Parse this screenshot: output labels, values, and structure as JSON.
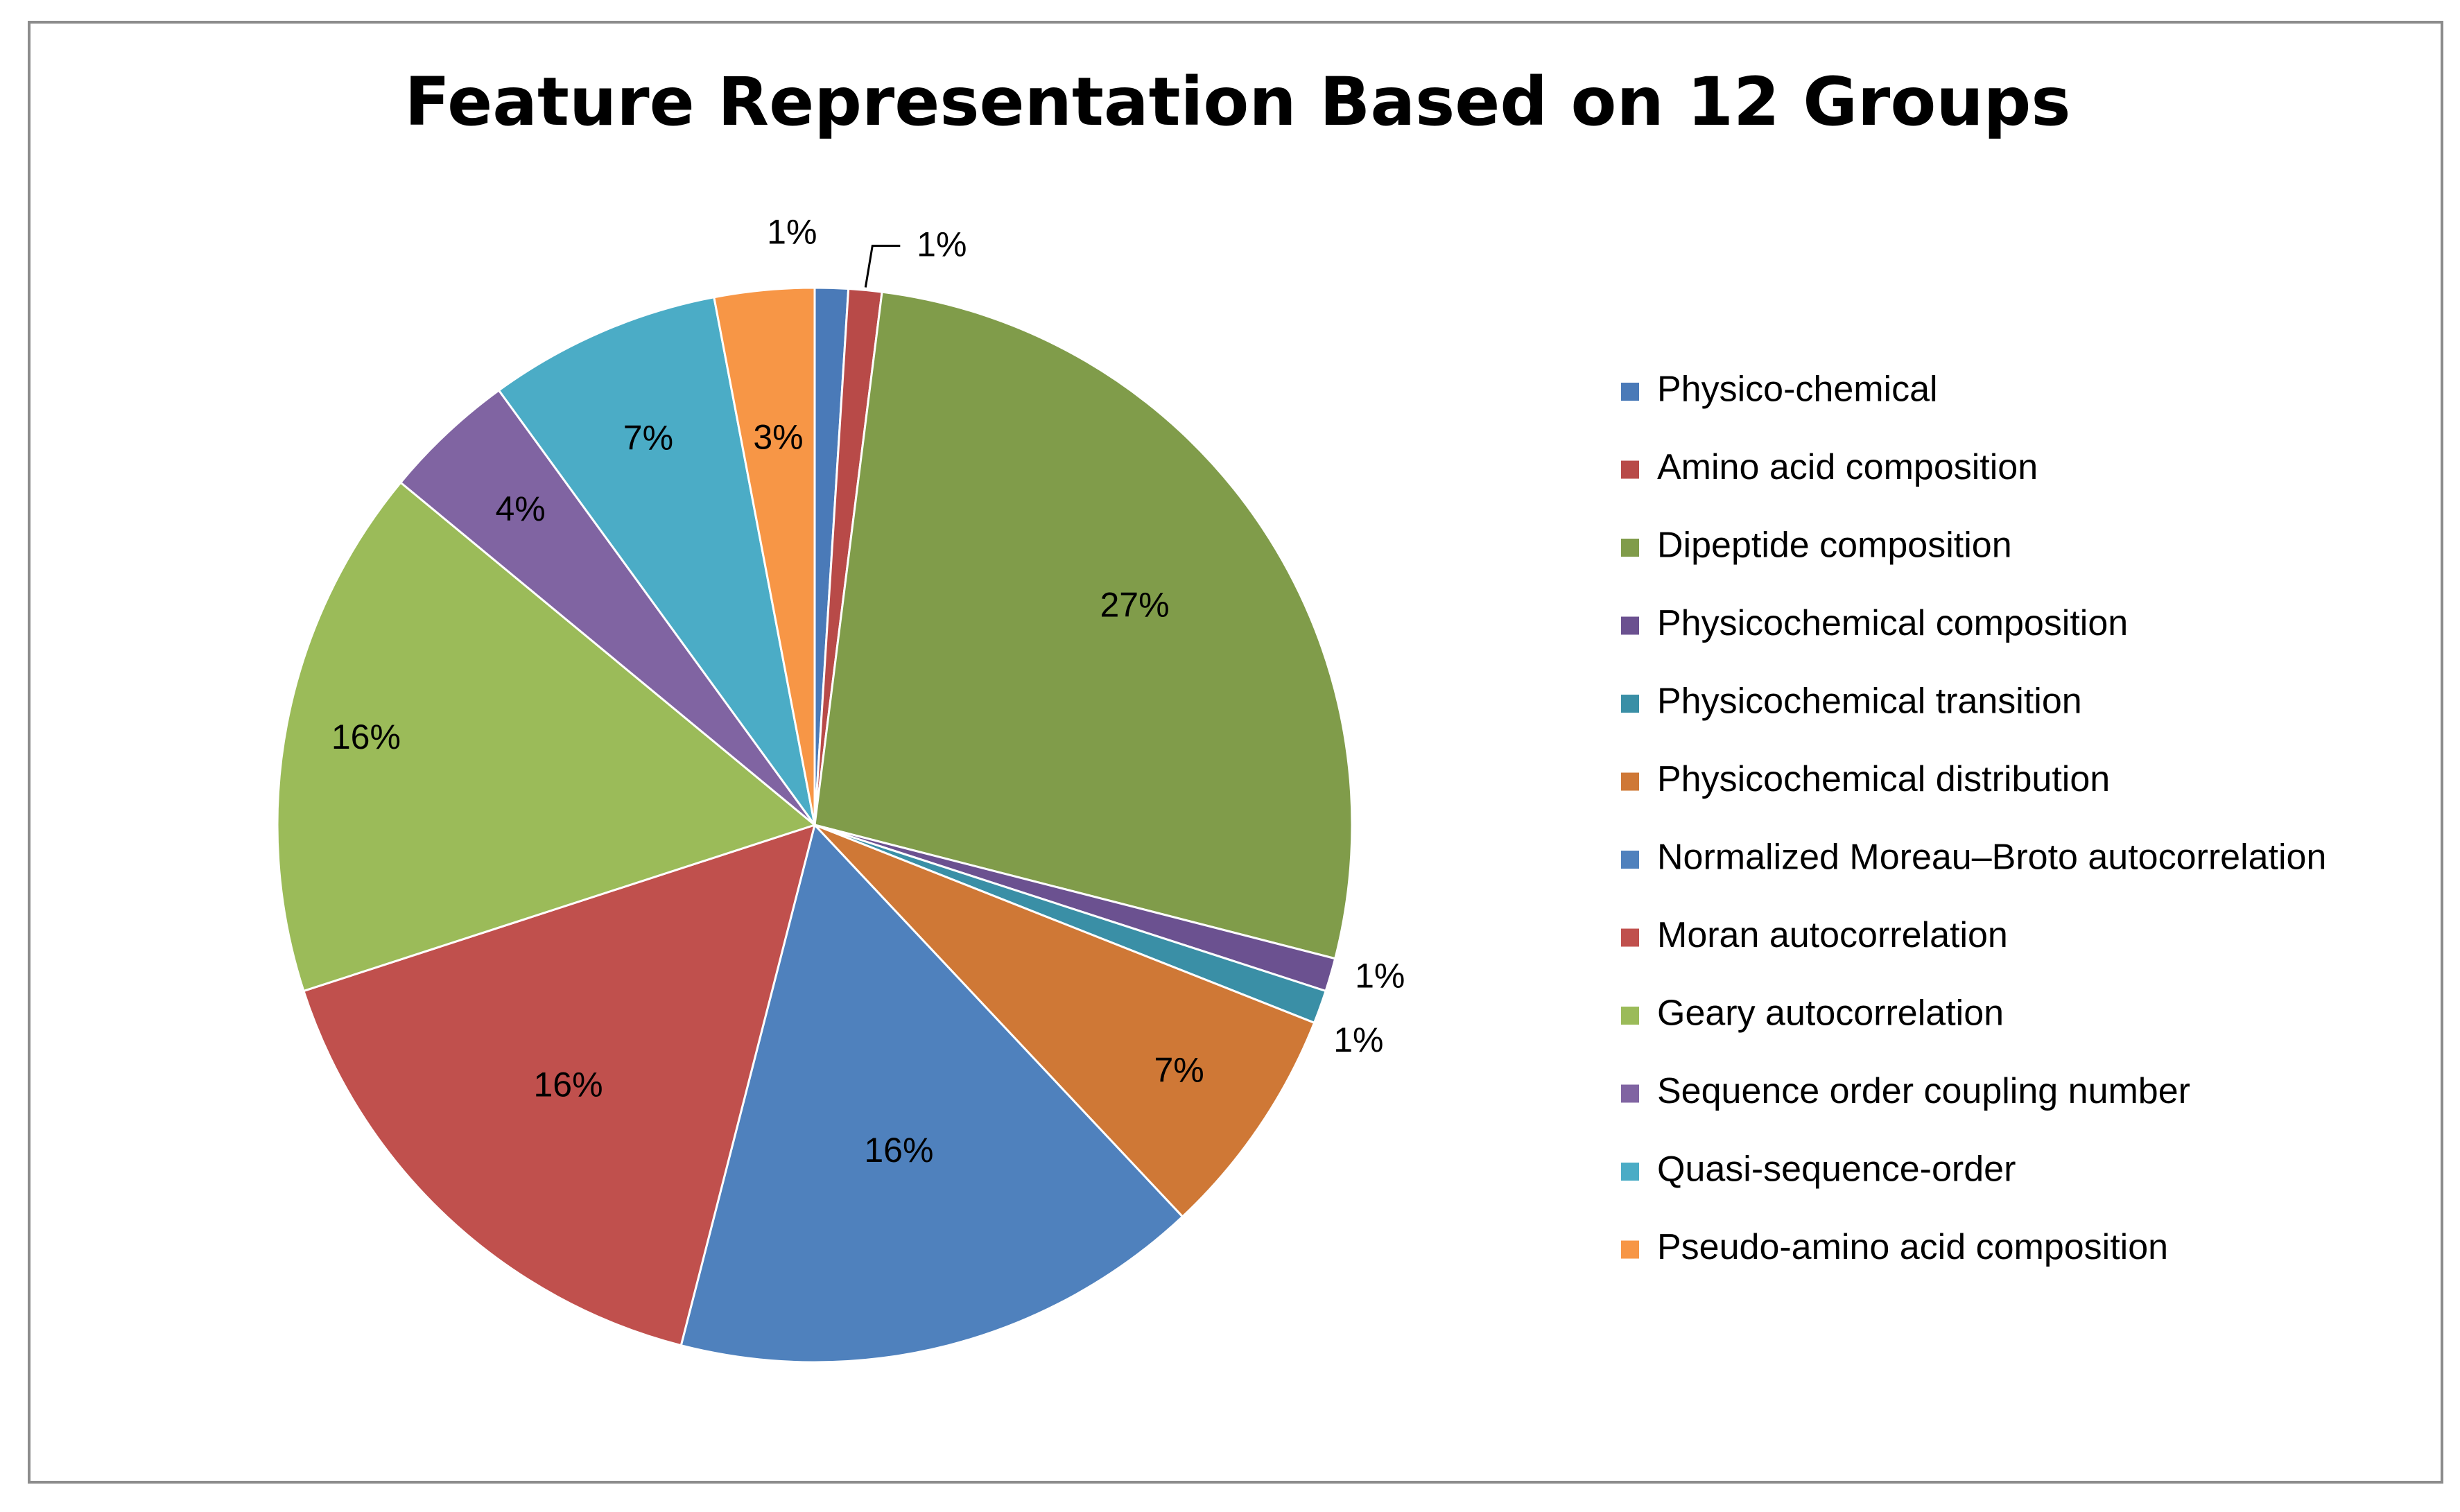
{
  "chart_data": {
    "type": "pie",
    "title": "Feature Representation Based on 12 Groups",
    "legend_position": "right",
    "slices": [
      {
        "label": "Physico-chemical",
        "value": 1,
        "data_label": "1%",
        "color": "#4a7ab8"
      },
      {
        "label": "Amino acid composition",
        "value": 1,
        "data_label": "1%",
        "color": "#b84a48"
      },
      {
        "label": "Dipeptide composition",
        "value": 27,
        "data_label": "27%",
        "color": "#809c4a"
      },
      {
        "label": "Physicochemical composition",
        "value": 1,
        "data_label": "1%",
        "color": "#6b5190"
      },
      {
        "label": "Physicochemical transition",
        "value": 1,
        "data_label": "1%",
        "color": "#3a8fa6"
      },
      {
        "label": "Physicochemical distribution",
        "value": 7,
        "data_label": "7%",
        "color": "#cf7836"
      },
      {
        "label": "Normalized Moreau–Broto autocorrelation",
        "value": 16,
        "data_label": "16%",
        "color": "#4f81bd"
      },
      {
        "label": "Moran autocorrelation",
        "value": 16,
        "data_label": "16%",
        "color": "#c0504d"
      },
      {
        "label": "Geary autocorrelation",
        "value": 16,
        "data_label": "16%",
        "color": "#9bbb59"
      },
      {
        "label": "Sequence order coupling number",
        "value": 4,
        "data_label": "4%",
        "color": "#8064a2"
      },
      {
        "label": "Quasi-sequence-order",
        "value": 7,
        "data_label": "7%",
        "color": "#4bacc6"
      },
      {
        "label": "Pseudo-amino acid composition",
        "value": 3,
        "data_label": "3%",
        "color": "#f79646"
      }
    ]
  }
}
